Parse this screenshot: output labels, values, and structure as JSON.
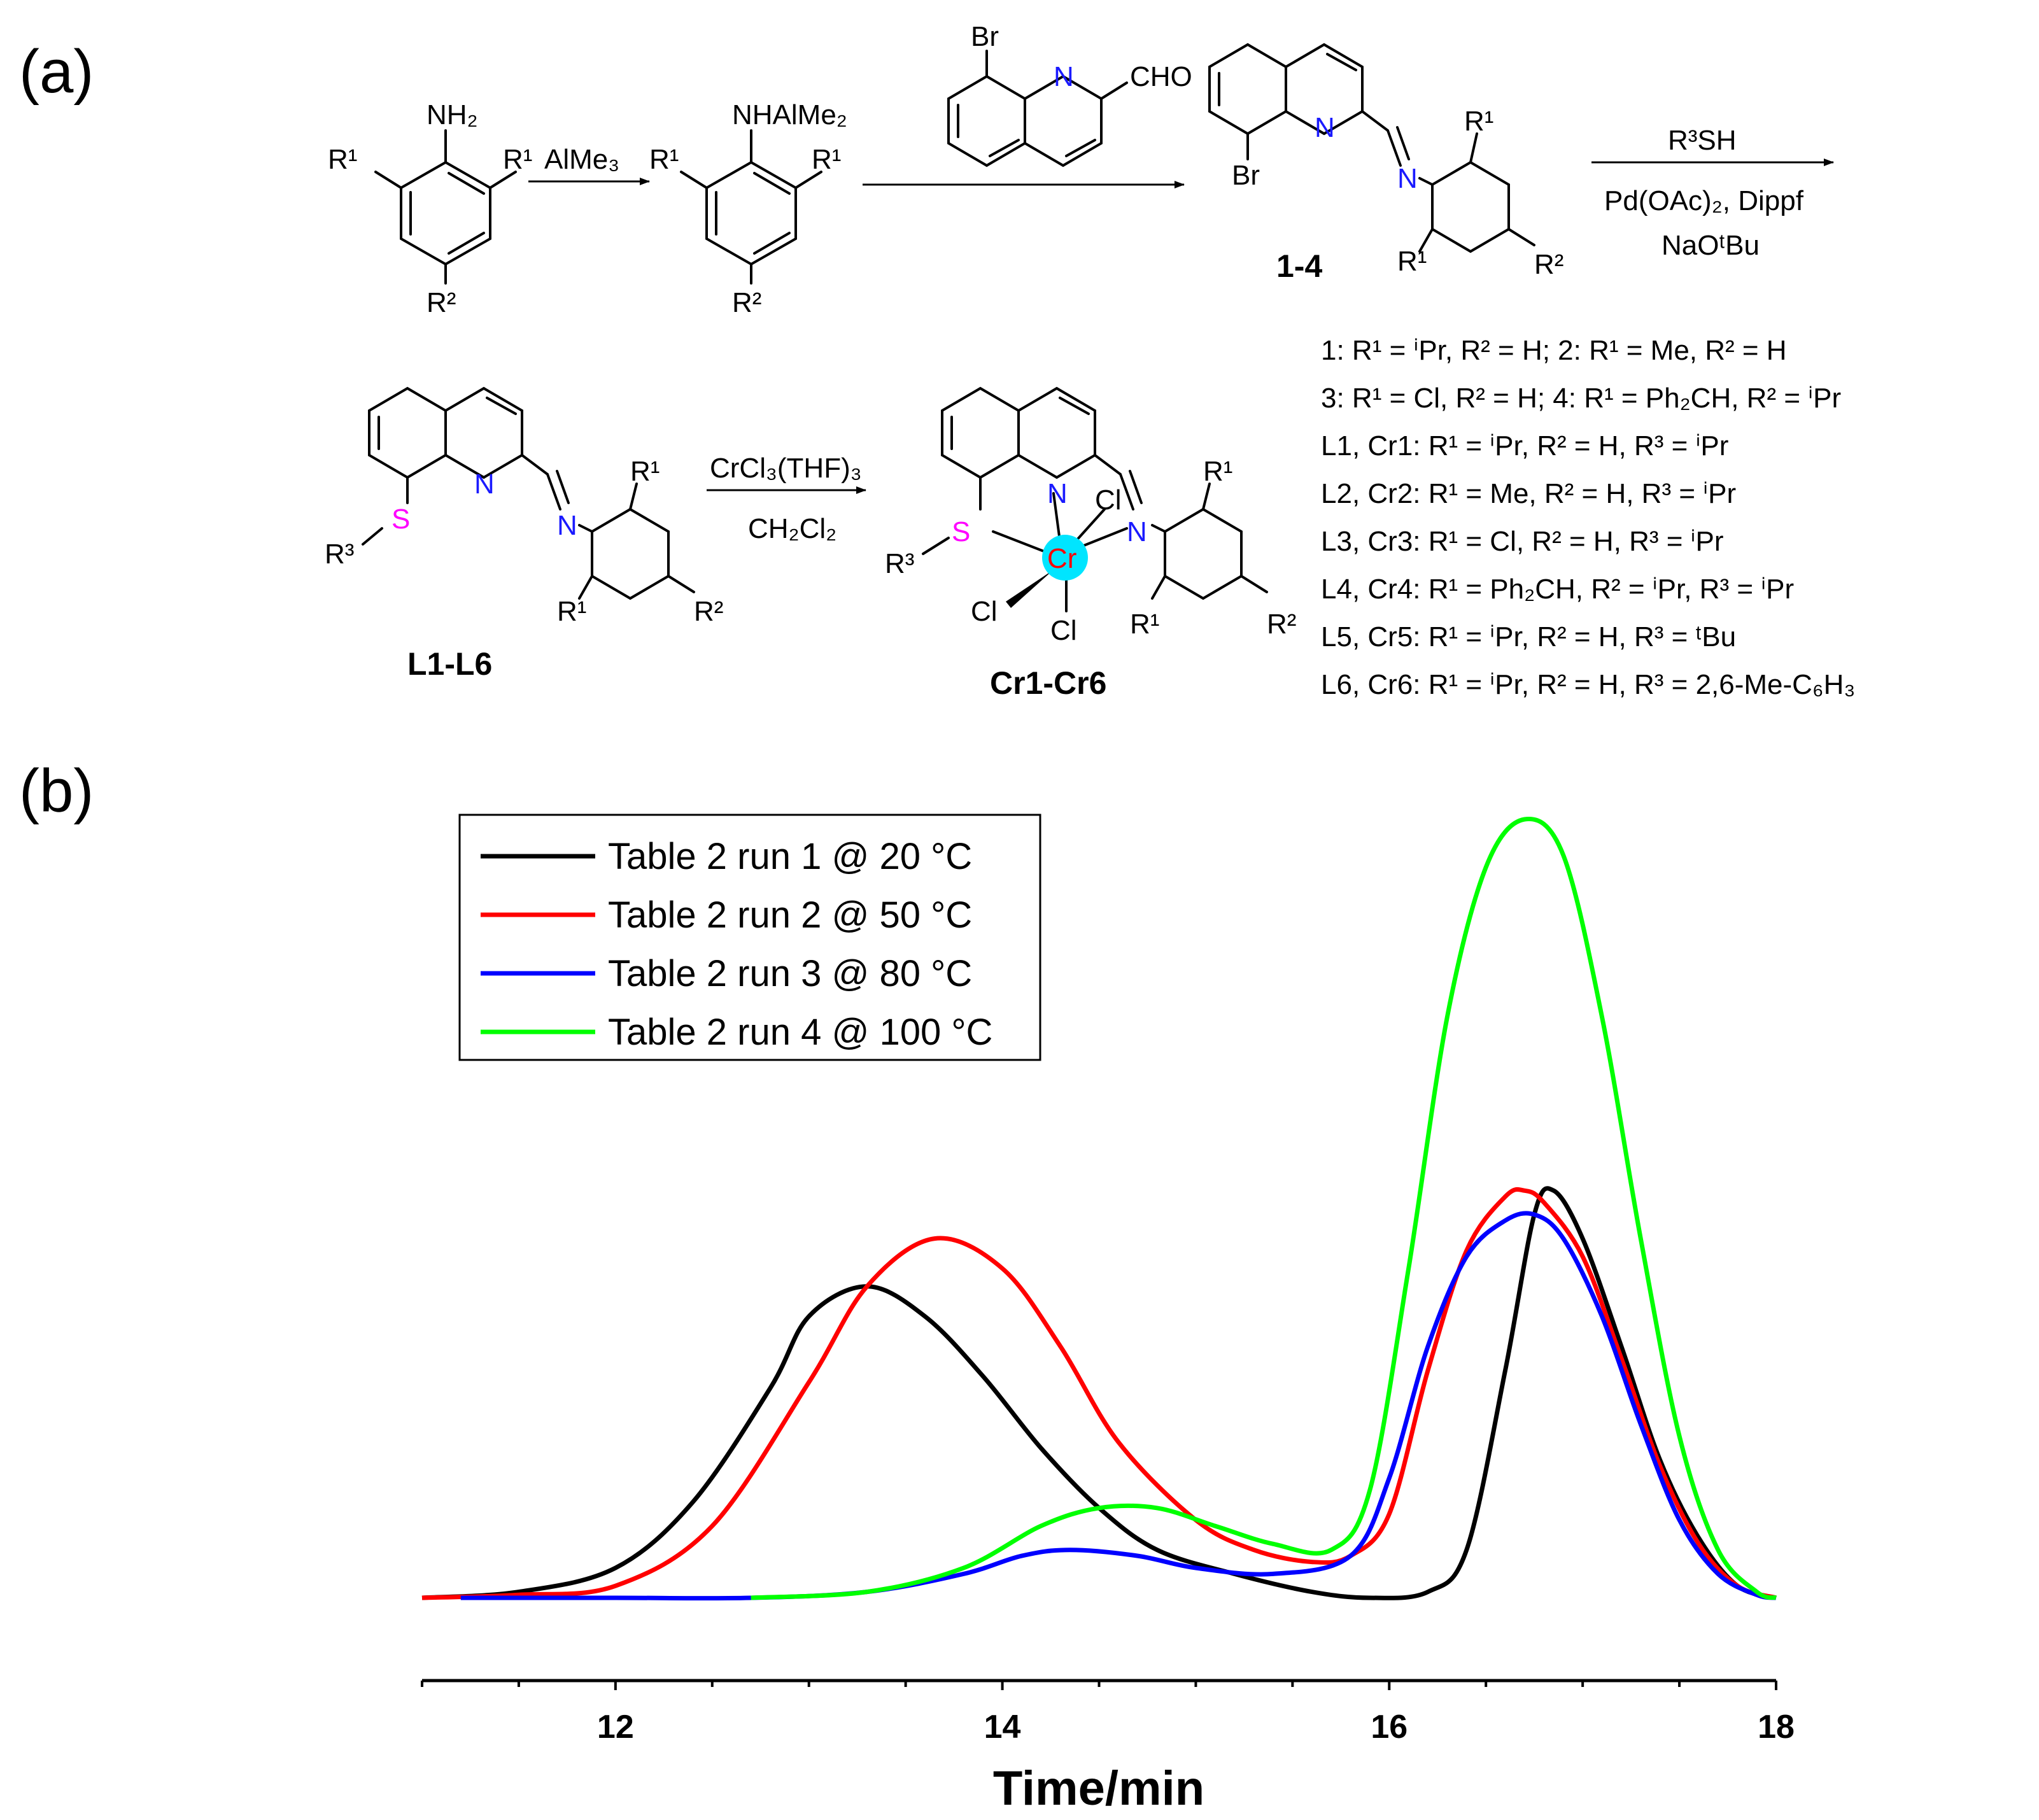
{
  "panel_a": {
    "label": "(a)",
    "reagents": {
      "step1": "AlMe₃",
      "step3_top": "R³SH",
      "step3_mid": "Pd(OAc)₂, Dippf",
      "step3_bot": "NaOᵗBu",
      "step4_top": "CrCl₃(THF)₃",
      "step4_bot": "CH₂Cl₂"
    },
    "compounds": {
      "aniline_nh2": "NH₂",
      "nhalme2": "NHAlMe₂",
      "aldehyde_br": "Br",
      "aldehyde_n": "N",
      "aldehyde_cho": "CHO",
      "imine_label": "1-4",
      "ligand_label": "L1-L6",
      "complex_label": "Cr1-Cr6",
      "r1": "R¹",
      "r2": "R²",
      "r3": "R³",
      "br": "Br",
      "n": "N",
      "s": "S",
      "cr": "Cr",
      "cl": "Cl"
    },
    "substituent_list": [
      "1: R¹ = ⁱPr, R² = H;  2: R¹ = Me, R² = H",
      "3: R¹ = Cl, R² = H;  4: R¹ = Ph₂CH, R² = ⁱPr",
      "L1, Cr1: R¹ = ⁱPr, R² = H, R³ = ⁱPr",
      "L2, Cr2: R¹ = Me, R² = H, R³ = ⁱPr",
      "L3, Cr3: R¹ = Cl, R² = H, R³ = ⁱPr",
      "L4, Cr4: R¹ = Ph₂CH, R² = ⁱPr, R³ = ⁱPr",
      "L5, Cr5: R¹ = ⁱPr, R² = H, R³ = ᵗBu",
      "L6, Cr6: R¹ = ⁱPr, R² = H, R³ = 2,6-Me-C₆H₃"
    ],
    "colors": {
      "n": "#1a1aff",
      "s": "#ff00ff",
      "cr": "#ff0000",
      "cr_highlight": "#00e5ff"
    }
  },
  "panel_b": {
    "label": "(b)"
  },
  "chart_data": {
    "type": "line",
    "title": "",
    "xlabel": "Time/min",
    "ylabel": "",
    "xlim": [
      11,
      18
    ],
    "ylim": [
      0,
      1.35
    ],
    "xticks": [
      "12",
      "14",
      "16",
      "18"
    ],
    "grid": false,
    "legend_position": "top-left",
    "series": [
      {
        "name": "Table 2 run 1 @ 20 °C",
        "color": "#000000",
        "x": [
          11.0,
          11.5,
          12.0,
          12.4,
          12.8,
          13.0,
          13.3,
          13.6,
          13.9,
          14.2,
          14.5,
          14.8,
          15.2,
          15.6,
          15.9,
          16.2,
          16.4,
          16.6,
          16.75,
          16.85,
          17.0,
          17.2,
          17.4,
          17.6,
          17.8,
          18.0
        ],
        "y": [
          0.0,
          0.01,
          0.05,
          0.16,
          0.35,
          0.47,
          0.52,
          0.47,
          0.37,
          0.25,
          0.15,
          0.08,
          0.04,
          0.01,
          0.0,
          0.01,
          0.08,
          0.38,
          0.64,
          0.68,
          0.6,
          0.42,
          0.23,
          0.1,
          0.02,
          0.0
        ]
      },
      {
        "name": "Table 2 run 2 @ 50 °C",
        "color": "#ff0000",
        "x": [
          11.0,
          11.5,
          12.0,
          12.5,
          13.0,
          13.3,
          13.65,
          14.0,
          14.3,
          14.6,
          15.0,
          15.3,
          15.6,
          15.8,
          16.0,
          16.2,
          16.4,
          16.6,
          16.7,
          16.8,
          17.0,
          17.2,
          17.4,
          17.6,
          17.8,
          18.0
        ],
        "y": [
          0.0,
          0.005,
          0.02,
          0.12,
          0.36,
          0.52,
          0.6,
          0.55,
          0.42,
          0.26,
          0.13,
          0.08,
          0.06,
          0.07,
          0.14,
          0.38,
          0.58,
          0.67,
          0.68,
          0.66,
          0.57,
          0.4,
          0.22,
          0.09,
          0.02,
          0.0
        ]
      },
      {
        "name": "Table 2 run 3 @ 80 °C",
        "color": "#0000ff",
        "x": [
          11.2,
          12.0,
          12.7,
          13.3,
          13.8,
          14.1,
          14.35,
          14.7,
          15.0,
          15.4,
          15.8,
          16.0,
          16.2,
          16.4,
          16.6,
          16.75,
          16.9,
          17.1,
          17.3,
          17.5,
          17.7,
          17.9,
          18.0
        ],
        "y": [
          0.0,
          0.0,
          0.0,
          0.01,
          0.04,
          0.07,
          0.08,
          0.07,
          0.05,
          0.04,
          0.07,
          0.2,
          0.42,
          0.57,
          0.63,
          0.64,
          0.6,
          0.47,
          0.29,
          0.13,
          0.04,
          0.005,
          0.0
        ]
      },
      {
        "name": "Table 2 run 4 @ 100 °C",
        "color": "#00ff00",
        "x": [
          12.7,
          13.3,
          13.8,
          14.2,
          14.5,
          14.8,
          15.1,
          15.4,
          15.7,
          15.9,
          16.1,
          16.3,
          16.5,
          16.7,
          16.9,
          17.1,
          17.3,
          17.5,
          17.7,
          17.9,
          18.0
        ],
        "y": [
          0.0,
          0.01,
          0.05,
          0.12,
          0.15,
          0.15,
          0.12,
          0.09,
          0.08,
          0.18,
          0.55,
          0.97,
          1.22,
          1.3,
          1.24,
          0.97,
          0.6,
          0.27,
          0.08,
          0.01,
          0.0
        ]
      }
    ]
  }
}
